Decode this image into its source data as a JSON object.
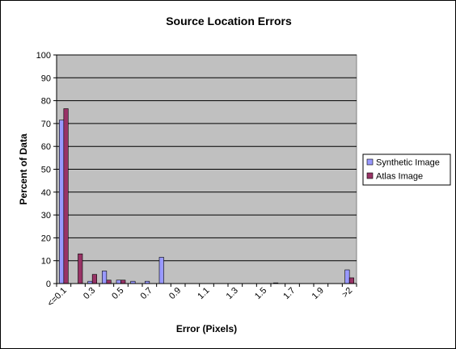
{
  "chart_data": {
    "type": "bar",
    "title": "Source Location Errors",
    "xlabel": "Error (Pixels)",
    "ylabel": "Percent of Data",
    "ylim": [
      0,
      100
    ],
    "yticks": [
      0,
      10,
      20,
      30,
      40,
      50,
      60,
      70,
      80,
      90,
      100
    ],
    "categories": [
      "<=0.1",
      "0.2",
      "0.3",
      "0.4",
      "0.5",
      "0.6",
      "0.7",
      "0.8",
      "0.9",
      "1.0",
      "1.1",
      "1.2",
      "1.3",
      "1.4",
      "1.5",
      "1.6",
      "1.7",
      "1.8",
      "1.9",
      "2.0",
      ">2"
    ],
    "visible_tick_labels": [
      "<=0.1",
      "0.3",
      "0.5",
      "0.7",
      "0.9",
      "1.1",
      "1.3",
      "1.5",
      "1.7",
      "1.9",
      ">2"
    ],
    "series": [
      {
        "name": "Synthetic Image",
        "color": "#9999FF",
        "values": [
          71.5,
          0,
          1,
          5.5,
          1.5,
          1,
          1,
          11.5,
          0,
          0,
          0,
          0,
          0,
          0,
          0,
          0.3,
          0,
          0,
          0,
          0,
          6
        ]
      },
      {
        "name": "Atlas Image",
        "color": "#993366",
        "values": [
          76.5,
          13,
          4,
          1.5,
          1.5,
          0,
          0,
          0,
          0,
          0,
          0,
          0,
          0,
          0,
          0,
          0,
          0,
          0,
          0,
          0,
          2.5
        ]
      }
    ],
    "plot_background": "#C0C0C0",
    "grid": true,
    "legend": "right"
  }
}
